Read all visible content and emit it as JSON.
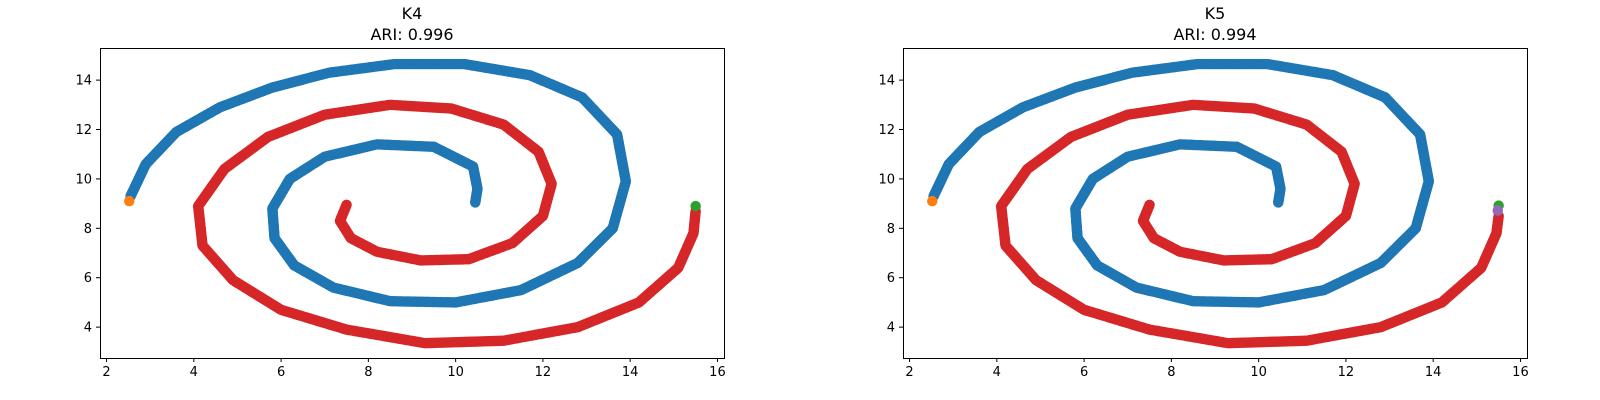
{
  "chart_data": [
    {
      "type": "scatter",
      "title": "K4",
      "subtitle": "ARI: 0.996",
      "xlabel": "",
      "ylabel": "",
      "xlim": [
        1.85,
        16.15
      ],
      "ylim": [
        2.75,
        15.3
      ],
      "xticks": [
        2,
        4,
        6,
        8,
        10,
        12,
        14,
        16
      ],
      "yticks": [
        4,
        6,
        8,
        10,
        12,
        14
      ],
      "grid": false,
      "legend": "none",
      "point_radius_data": 0.12,
      "series": [
        {
          "color": "#1f77b4",
          "polyline": [
            [
              2.55,
              9.3
            ],
            [
              2.9,
              10.6
            ],
            [
              3.6,
              11.9
            ],
            [
              4.6,
              12.9
            ],
            [
              5.8,
              13.7
            ],
            [
              7.1,
              14.3
            ],
            [
              8.6,
              14.65
            ],
            [
              10.2,
              14.65
            ],
            [
              11.7,
              14.2
            ],
            [
              12.9,
              13.3
            ],
            [
              13.7,
              11.8
            ],
            [
              13.9,
              9.9
            ],
            [
              13.6,
              8.0
            ],
            [
              12.8,
              6.6
            ],
            [
              11.5,
              5.5
            ],
            [
              10.0,
              5.0
            ],
            [
              8.5,
              5.05
            ],
            [
              7.2,
              5.6
            ],
            [
              6.3,
              6.5
            ],
            [
              5.85,
              7.6
            ],
            [
              5.8,
              8.8
            ],
            [
              6.2,
              10.0
            ],
            [
              7.0,
              10.9
            ],
            [
              8.2,
              11.4
            ],
            [
              9.5,
              11.3
            ],
            [
              10.4,
              10.5
            ],
            [
              10.5,
              9.6
            ],
            [
              10.45,
              9.05
            ]
          ]
        },
        {
          "color": "#d62728",
          "polyline": [
            [
              7.5,
              8.95
            ],
            [
              7.35,
              8.3
            ],
            [
              7.6,
              7.6
            ],
            [
              8.2,
              7.05
            ],
            [
              9.2,
              6.7
            ],
            [
              10.3,
              6.75
            ],
            [
              11.3,
              7.4
            ],
            [
              12.0,
              8.5
            ],
            [
              12.2,
              9.8
            ],
            [
              11.9,
              11.1
            ],
            [
              11.1,
              12.2
            ],
            [
              9.9,
              12.85
            ],
            [
              8.5,
              13.0
            ],
            [
              7.0,
              12.6
            ],
            [
              5.7,
              11.7
            ],
            [
              4.7,
              10.4
            ],
            [
              4.1,
              8.9
            ],
            [
              4.2,
              7.3
            ],
            [
              4.9,
              5.9
            ],
            [
              6.0,
              4.7
            ],
            [
              7.5,
              3.9
            ],
            [
              9.3,
              3.35
            ],
            [
              11.1,
              3.45
            ],
            [
              12.8,
              4.0
            ],
            [
              14.2,
              5.0
            ],
            [
              15.1,
              6.4
            ],
            [
              15.45,
              7.8
            ],
            [
              15.5,
              8.7
            ]
          ]
        },
        {
          "color": "#ff7f0e",
          "polyline": [
            [
              2.52,
              9.1
            ]
          ]
        },
        {
          "color": "#2ca02c",
          "polyline": [
            [
              15.5,
              8.9
            ]
          ]
        }
      ]
    },
    {
      "type": "scatter",
      "title": "K5",
      "subtitle": "ARI: 0.994",
      "xlabel": "",
      "ylabel": "",
      "xlim": [
        1.85,
        16.15
      ],
      "ylim": [
        2.75,
        15.3
      ],
      "xticks": [
        2,
        4,
        6,
        8,
        10,
        12,
        14,
        16
      ],
      "yticks": [
        4,
        6,
        8,
        10,
        12,
        14
      ],
      "grid": false,
      "legend": "none",
      "point_radius_data": 0.12,
      "series": [
        {
          "color": "#1f77b4",
          "polyline": [
            [
              2.55,
              9.3
            ],
            [
              2.9,
              10.6
            ],
            [
              3.6,
              11.9
            ],
            [
              4.6,
              12.9
            ],
            [
              5.8,
              13.7
            ],
            [
              7.1,
              14.3
            ],
            [
              8.6,
              14.65
            ],
            [
              10.2,
              14.65
            ],
            [
              11.7,
              14.2
            ],
            [
              12.9,
              13.3
            ],
            [
              13.7,
              11.8
            ],
            [
              13.9,
              9.9
            ],
            [
              13.6,
              8.0
            ],
            [
              12.8,
              6.6
            ],
            [
              11.5,
              5.5
            ],
            [
              10.0,
              5.0
            ],
            [
              8.5,
              5.05
            ],
            [
              7.2,
              5.6
            ],
            [
              6.3,
              6.5
            ],
            [
              5.85,
              7.6
            ],
            [
              5.8,
              8.8
            ],
            [
              6.2,
              10.0
            ],
            [
              7.0,
              10.9
            ],
            [
              8.2,
              11.4
            ],
            [
              9.5,
              11.3
            ],
            [
              10.4,
              10.5
            ],
            [
              10.5,
              9.6
            ],
            [
              10.45,
              9.05
            ]
          ]
        },
        {
          "color": "#d62728",
          "polyline": [
            [
              7.5,
              8.95
            ],
            [
              7.35,
              8.3
            ],
            [
              7.6,
              7.6
            ],
            [
              8.2,
              7.05
            ],
            [
              9.2,
              6.7
            ],
            [
              10.3,
              6.75
            ],
            [
              11.3,
              7.4
            ],
            [
              12.0,
              8.5
            ],
            [
              12.2,
              9.8
            ],
            [
              11.9,
              11.1
            ],
            [
              11.1,
              12.2
            ],
            [
              9.9,
              12.85
            ],
            [
              8.5,
              13.0
            ],
            [
              7.0,
              12.6
            ],
            [
              5.7,
              11.7
            ],
            [
              4.7,
              10.4
            ],
            [
              4.1,
              8.9
            ],
            [
              4.2,
              7.3
            ],
            [
              4.9,
              5.9
            ],
            [
              6.0,
              4.7
            ],
            [
              7.5,
              3.9
            ],
            [
              9.3,
              3.35
            ],
            [
              11.1,
              3.45
            ],
            [
              12.8,
              4.0
            ],
            [
              14.2,
              5.0
            ],
            [
              15.1,
              6.4
            ],
            [
              15.45,
              7.8
            ],
            [
              15.5,
              8.5
            ]
          ]
        },
        {
          "color": "#ff7f0e",
          "polyline": [
            [
              2.52,
              9.1
            ]
          ]
        },
        {
          "color": "#2ca02c",
          "polyline": [
            [
              15.5,
              8.92
            ]
          ]
        },
        {
          "color": "#9467bd",
          "polyline": [
            [
              15.48,
              8.72
            ]
          ]
        }
      ]
    }
  ]
}
